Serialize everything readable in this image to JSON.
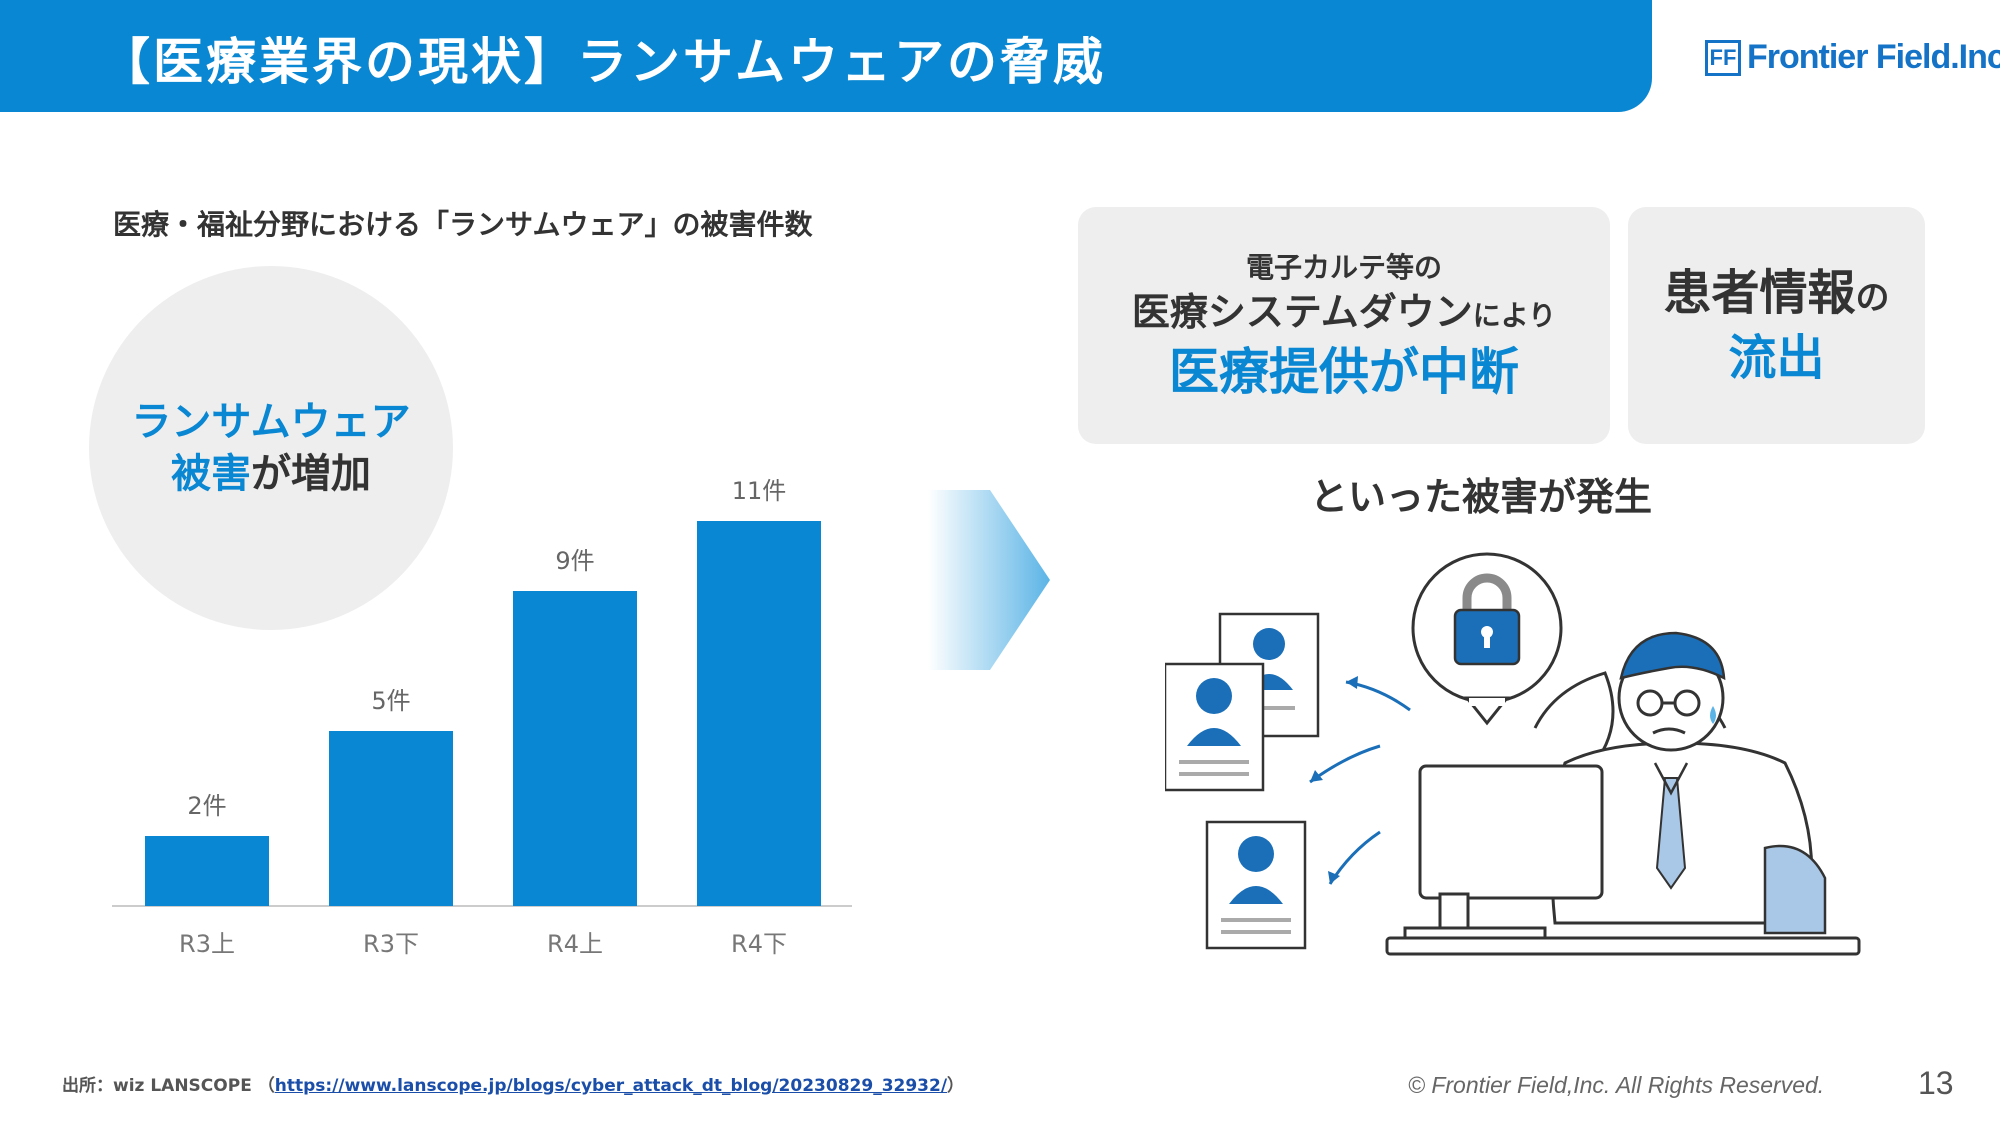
{
  "header": {
    "title": "【医療業界の現状】ランサムウェアの脅威",
    "logo_mark": "FF",
    "logo_text": "Frontier Field.Inc."
  },
  "left": {
    "chart_heading": "医療・福祉分野における「ランサムウェア」の被害件数",
    "circle_line1": "ランサムウェア",
    "circle_line2_blue": "被害",
    "circle_line2_dark": "が増加"
  },
  "chart_data": {
    "type": "bar",
    "categories": [
      "R3上",
      "R3下",
      "R4上",
      "R4下"
    ],
    "values": [
      2,
      5,
      9,
      11
    ],
    "data_labels": [
      "2件",
      "5件",
      "9件",
      "11件"
    ],
    "ylim": [
      0,
      12
    ],
    "grid": false,
    "color": "#0a87d2"
  },
  "right": {
    "card1_line1": "電子カルテ等の",
    "card1_line2": "医療システムダウン",
    "card1_line2_small": "により",
    "card1_line3": "医療提供が中断",
    "card2_line1": "患者情報",
    "card2_line1_small": "の",
    "card2_line2": "流出",
    "result_text": "といった被害が発生"
  },
  "footer": {
    "source_prefix": "出所：wiz LANSCOPE （",
    "source_url": "https://www.lanscope.jp/blogs/cyber_attack_dt_blog/20230829_32932/",
    "source_suffix": "）",
    "copyright": "© Frontier Field,Inc. All Rights Reserved.",
    "page_number": "13"
  },
  "colors": {
    "brand_blue": "#0a87d2",
    "card_gray": "#eeeeee",
    "text_dark": "#333333"
  },
  "icons": [
    "lock-icon",
    "person-document-icon",
    "arrow-right-icon",
    "worried-doctor-illustration",
    "computer-monitor-icon"
  ]
}
